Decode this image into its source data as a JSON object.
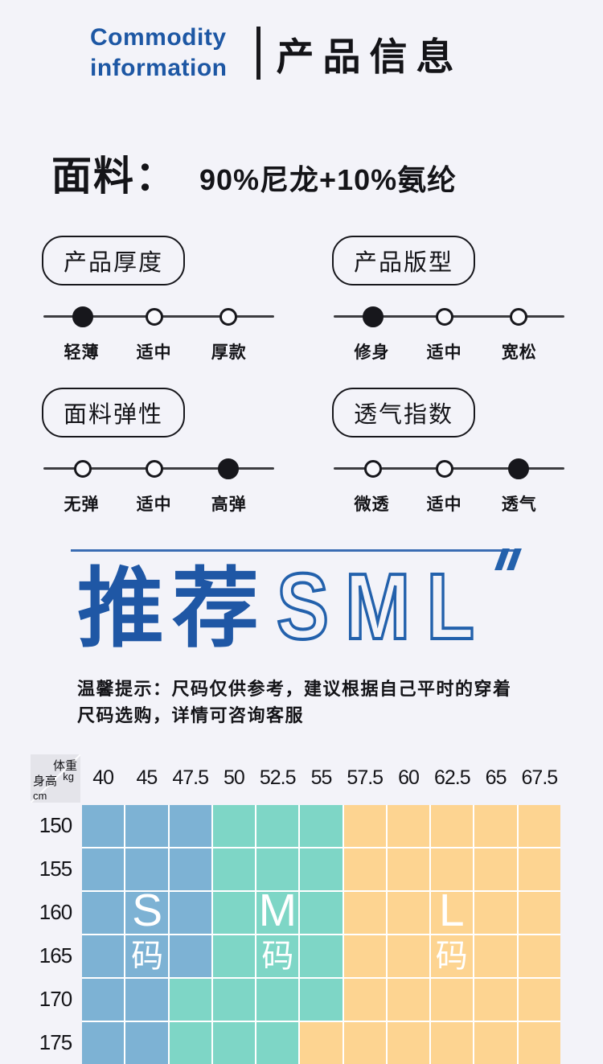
{
  "header": {
    "english_line1": "Commodity",
    "english_line2": "information",
    "chinese_title": "产品信息"
  },
  "fabric": {
    "label": "面料：",
    "value": "90%尼龙+10%氨纶"
  },
  "specs": [
    {
      "key": "thickness",
      "title": "产品厚度",
      "options": [
        "轻薄",
        "适中",
        "厚款"
      ],
      "selected_index": 0
    },
    {
      "key": "fit",
      "title": "产品版型",
      "options": [
        "修身",
        "适中",
        "宽松"
      ],
      "selected_index": 0
    },
    {
      "key": "elasticity",
      "title": "面料弹性",
      "options": [
        "无弹",
        "适中",
        "高弹"
      ],
      "selected_index": 2
    },
    {
      "key": "breathability",
      "title": "透气指数",
      "options": [
        "微透",
        "适中",
        "透气"
      ],
      "selected_index": 2
    }
  ],
  "recommendation": {
    "prefix": "推荐",
    "sizes": "SML",
    "tip_line1": "温馨提示：尺码仅供参考，建议根据自己平时的穿着",
    "tip_line2": "尺码选购，详情可咨询客服"
  },
  "size_chart": {
    "corner": {
      "weight_label": "体重",
      "weight_unit": "kg",
      "height_label": "身高",
      "height_unit": "cm"
    },
    "weight_headers": [
      "40",
      "45",
      "47.5",
      "50",
      "52.5",
      "55",
      "57.5",
      "60",
      "62.5",
      "65",
      "67.5"
    ],
    "height_headers": [
      "150",
      "155",
      "160",
      "165",
      "170",
      "175"
    ],
    "rows": [
      "SSSMMMLLLLL",
      "SSSMMMLLLLL",
      "SSSMMMLLLLL",
      "SSSMMMLLLLL",
      "SSMMMMLLLLL",
      "SSMMMLLLLLL"
    ],
    "size_regions": [
      {
        "letter": "S",
        "suffix": "码",
        "col_index": 1,
        "letter_row_index": 2,
        "suffix_row_index": 3
      },
      {
        "letter": "M",
        "suffix": "码",
        "col_index": 4,
        "letter_row_index": 2,
        "suffix_row_index": 3
      },
      {
        "letter": "L",
        "suffix": "码",
        "col_index": 8,
        "letter_row_index": 2,
        "suffix_row_index": 3
      }
    ],
    "colors": {
      "S": "#7db2d4",
      "M": "#7ed6c6",
      "L": "#fdd491"
    }
  },
  "colors": {
    "accent_blue": "#1d57a4",
    "outline_blue": "#2361ac",
    "divider_blue": "#3a6cb3",
    "background": "#f3f3f9",
    "corner_gray": "#e4e4ea"
  }
}
